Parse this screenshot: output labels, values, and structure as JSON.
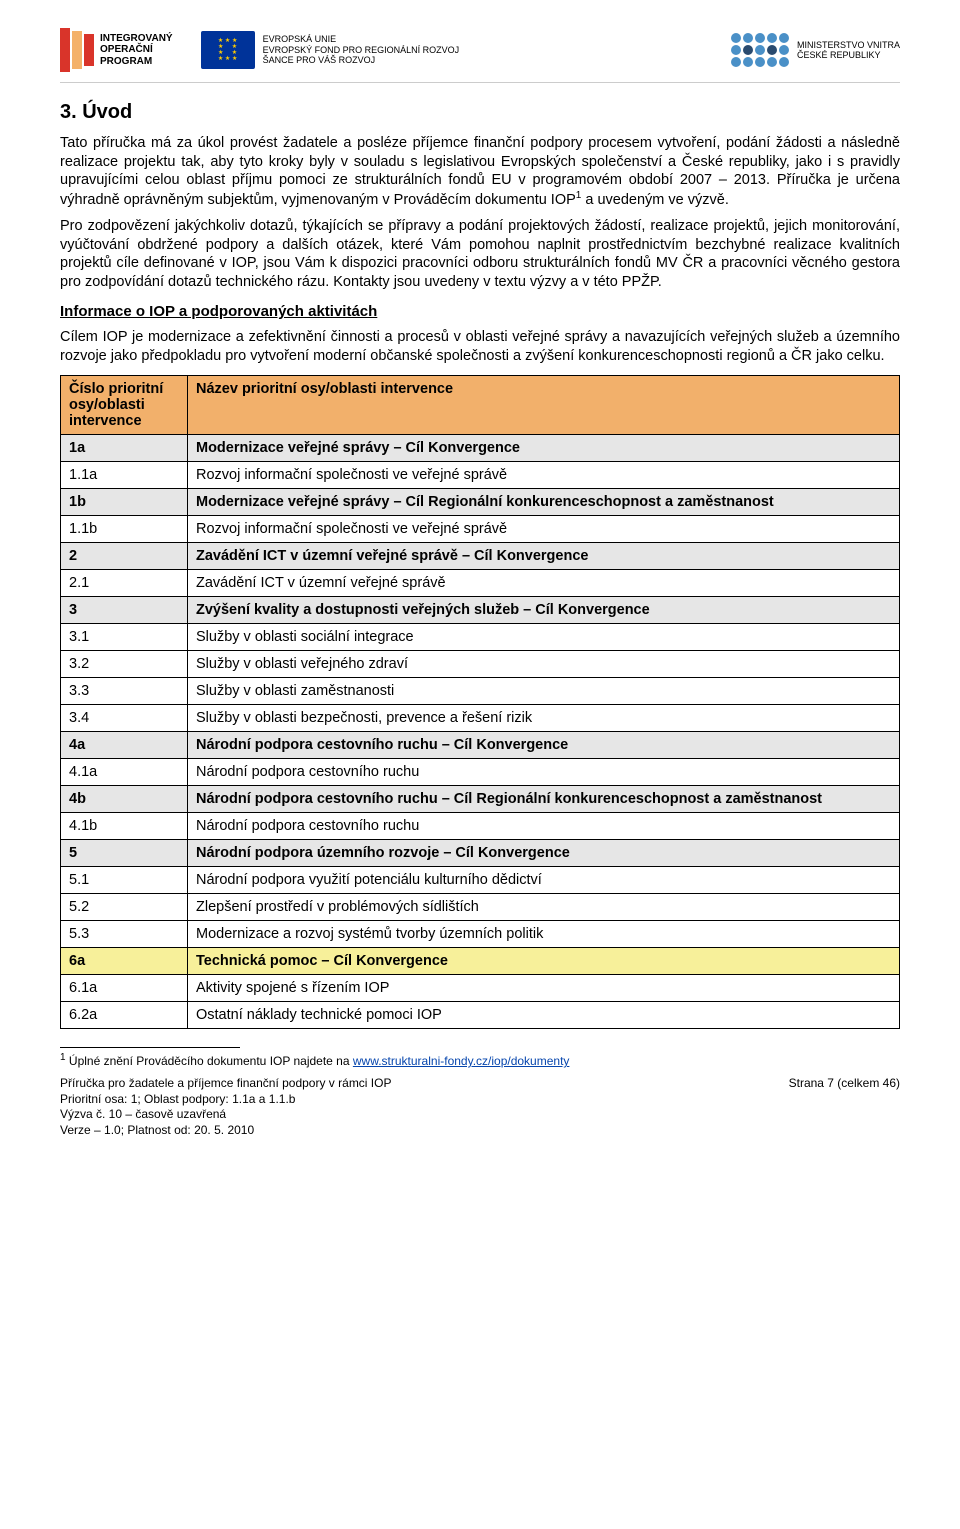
{
  "header": {
    "iop_line1": "INTEGROVANÝ",
    "iop_line2": "OPERAČNÍ",
    "iop_line3": "PROGRAM",
    "eu_line1": "EVROPSKÁ UNIE",
    "eu_line2": "EVROPSKÝ FOND PRO REGIONÁLNÍ ROZVOJ",
    "eu_line3": "ŠANCE PRO VÁŠ ROZVOJ",
    "mvcr_line1": "MINISTERSTVO VNITRA",
    "mvcr_line2": "ČESKÉ REPUBLIKY"
  },
  "section": {
    "title": "3.    Úvod",
    "p1": "Tato příručka má za úkol provést žadatele a posléze příjemce finanční podpory procesem vytvoření, podání žádosti a následně realizace projektu tak, aby tyto kroky byly v souladu s legislativou Evropských společenství a České republiky, jako i s pravidly upravujícími celou oblast příjmu pomoci ze strukturálních fondů EU v programovém období 2007 – 2013. Příručka je určena výhradně oprávněným subjektům, vyjmenovaným v Prováděcím dokumentu IOP",
    "p1_sup": "1",
    "p1_tail": " a uvedeným ve výzvě.",
    "p2": "Pro zodpovězení jakýchkoliv dotazů, týkajících se přípravy a podání projektových žádostí, realizace projektů, jejich monitorování, vyúčtování obdržené podpory a dalších otázek, které Vám pomohou naplnit prostřednictvím bezchybné realizace kvalitních projektů cíle definované v IOP, jsou Vám k dispozici pracovníci odboru strukturálních fondů MV ČR a pracovníci věcného gestora pro zodpovídání dotazů technického rázu. Kontakty jsou uvedeny v textu výzvy a v této PPŽP.",
    "subhead": "Informace o IOP a podporovaných aktivitách",
    "p3": "Cílem IOP je modernizace a zefektivnění činnosti a procesů v oblasti veřejné správy a navazujících veřejných služeb a územního rozvoje jako předpokladu pro vytvoření moderní občanské společnosti a zvýšení konkurenceschopnosti regionů a ČR jako celku."
  },
  "table": {
    "header_col1": "Číslo prioritní osy/oblasti intervence",
    "header_col2": "Název prioritní osy/oblasti intervence",
    "rows": [
      {
        "type": "grouphdr",
        "c1": "1a",
        "c2": "Modernizace veřejné správy – Cíl Konvergence"
      },
      {
        "type": "plain",
        "c1": " 1.1a",
        "c2": "Rozvoj informační společnosti ve veřejné správě"
      },
      {
        "type": "grouphdr",
        "c1": "1b",
        "c2": "Modernizace veřejné správy – Cíl Regionální konkurenceschopnost a zaměstnanost"
      },
      {
        "type": "plain",
        "c1": " 1.1b",
        "c2": "Rozvoj informační společnosti ve veřejné správě"
      },
      {
        "type": "grouphdr",
        "c1": "2",
        "c2": "Zavádění ICT v územní veřejné správě – Cíl Konvergence"
      },
      {
        "type": "plain",
        "c1": " 2.1",
        "c2": "Zavádění ICT v územní veřejné správě"
      },
      {
        "type": "grouphdr",
        "c1": "3",
        "c2": "Zvýšení kvality a dostupnosti veřejných služeb – Cíl Konvergence"
      },
      {
        "type": "plain",
        "c1": " 3.1",
        "c2": "Služby v oblasti sociální integrace"
      },
      {
        "type": "plain",
        "c1": " 3.2",
        "c2": "Služby v oblasti veřejného zdraví"
      },
      {
        "type": "plain",
        "c1": " 3.3",
        "c2": "Služby v oblasti zaměstnanosti"
      },
      {
        "type": "plain",
        "c1": " 3.4",
        "c2": "Služby v oblasti bezpečnosti, prevence a řešení rizik"
      },
      {
        "type": "grouphdr",
        "c1": "4a",
        "c2": "Národní podpora cestovního ruchu – Cíl Konvergence"
      },
      {
        "type": "plain",
        "c1": " 4.1a",
        "c2": "Národní podpora cestovního ruchu"
      },
      {
        "type": "grouphdr",
        "c1": "4b",
        "c2": "Národní podpora cestovního ruchu – Cíl Regionální konkurenceschopnost a zaměstnanost"
      },
      {
        "type": "plain",
        "c1": " 4.1b",
        "c2": "Národní podpora cestovního ruchu"
      },
      {
        "type": "grouphdr",
        "c1": "5",
        "c2": "Národní podpora územního rozvoje – Cíl Konvergence"
      },
      {
        "type": "plain",
        "c1": " 5.1",
        "c2": "Národní podpora využití potenciálu kulturního dědictví"
      },
      {
        "type": "plain",
        "c1": " 5.2",
        "c2": "Zlepšení prostředí v problémových sídlištích"
      },
      {
        "type": "plain",
        "c1": " 5.3",
        "c2": "Modernizace a rozvoj systémů tvorby územních politik"
      },
      {
        "type": "highlight",
        "c1": "6a",
        "c2": "Technická pomoc – Cíl Konvergence"
      },
      {
        "type": "plain",
        "c1": " 6.1a",
        "c2": "Aktivity spojené s řízením IOP"
      },
      {
        "type": "plain",
        "c1": " 6.2a",
        "c2": "Ostatní náklady technické pomoci IOP"
      }
    ]
  },
  "footnote": {
    "num": "1",
    "text": " Úplné znění Prováděcího dokumentu IOP najdete na ",
    "link_text": "www.strukturalni-fondy.cz/iop/dokumenty"
  },
  "footer": {
    "l1": "Příručka pro žadatele a příjemce finanční podpory v rámci IOP",
    "l2": "Prioritní osa: 1; Oblast podpory: 1.1a a 1.1.b",
    "l3": "Výzva č. 10 – časově uzavřená",
    "l4": "Verze – 1.0; Platnost od: 20. 5.  2010",
    "right": "Strana 7 (celkem 46)"
  }
}
